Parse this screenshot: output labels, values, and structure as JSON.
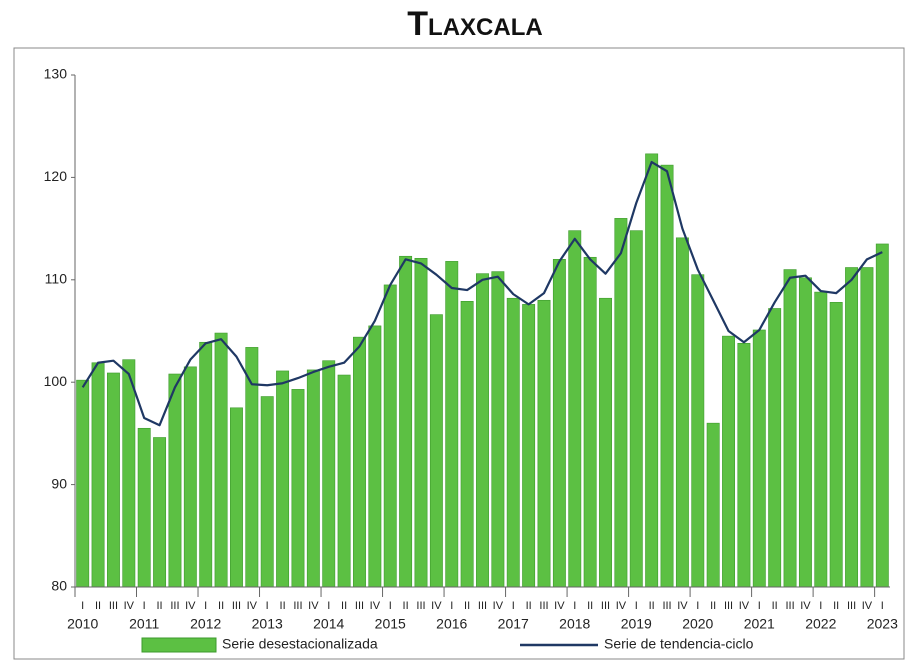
{
  "chart_data": {
    "type": "bar-line",
    "title": "Tlaxcala",
    "categories": [
      "I",
      "II",
      "III",
      "IV",
      "I",
      "II",
      "III",
      "IV",
      "I",
      "II",
      "III",
      "IV",
      "I",
      "II",
      "III",
      "IV",
      "I",
      "II",
      "III",
      "IV",
      "I",
      "II",
      "III",
      "IV",
      "I",
      "II",
      "III",
      "IV",
      "I",
      "II",
      "III",
      "IV",
      "I",
      "II",
      "III",
      "IV",
      "I",
      "II",
      "III",
      "IV",
      "I",
      "II",
      "III",
      "IV",
      "I",
      "II",
      "III",
      "IV",
      "I",
      "II",
      "III",
      "IV",
      "I"
    ],
    "years": [
      "2010",
      "2011",
      "2012",
      "2013",
      "2014",
      "2015",
      "2016",
      "2017",
      "2018",
      "2019",
      "2020",
      "2021",
      "2022",
      "2023"
    ],
    "series": [
      {
        "name": "Serie desestacionalizada",
        "kind": "bar",
        "color": "#5cc043",
        "values": [
          100.2,
          101.9,
          100.9,
          102.2,
          95.5,
          94.6,
          100.8,
          101.5,
          103.9,
          104.8,
          97.5,
          103.4,
          98.6,
          101.1,
          99.3,
          101.2,
          102.1,
          100.7,
          104.4,
          105.5,
          109.5,
          112.3,
          112.1,
          106.6,
          111.8,
          107.9,
          110.6,
          110.8,
          108.2,
          107.6,
          108.0,
          112.0,
          114.8,
          112.2,
          108.2,
          116.0,
          114.8,
          122.3,
          121.2,
          114.1,
          110.5,
          96.0,
          104.5,
          103.8,
          105.1,
          107.2,
          111.0,
          110.2,
          108.8,
          107.8,
          111.2,
          111.2,
          113.5
        ]
      },
      {
        "name": "Serie de tendencia-ciclo",
        "kind": "line",
        "color": "#1f3864",
        "values": [
          99.5,
          101.9,
          102.1,
          100.8,
          96.5,
          95.8,
          99.5,
          102.2,
          103.8,
          104.2,
          102.5,
          99.8,
          99.7,
          99.9,
          100.4,
          101.0,
          101.5,
          101.9,
          103.5,
          106.0,
          109.5,
          112.0,
          111.6,
          110.5,
          109.2,
          109.0,
          110.0,
          110.3,
          108.6,
          107.6,
          108.7,
          111.8,
          114.0,
          112.0,
          110.6,
          112.6,
          117.5,
          121.5,
          120.6,
          115.0,
          111.0,
          108.0,
          105.0,
          103.9,
          105.1,
          107.8,
          110.2,
          110.4,
          108.9,
          108.7,
          110.0,
          112.0,
          112.7
        ]
      }
    ],
    "ylim": [
      80,
      130
    ],
    "yticks": [
      80,
      90,
      100,
      110,
      120,
      130
    ],
    "grid": false
  }
}
